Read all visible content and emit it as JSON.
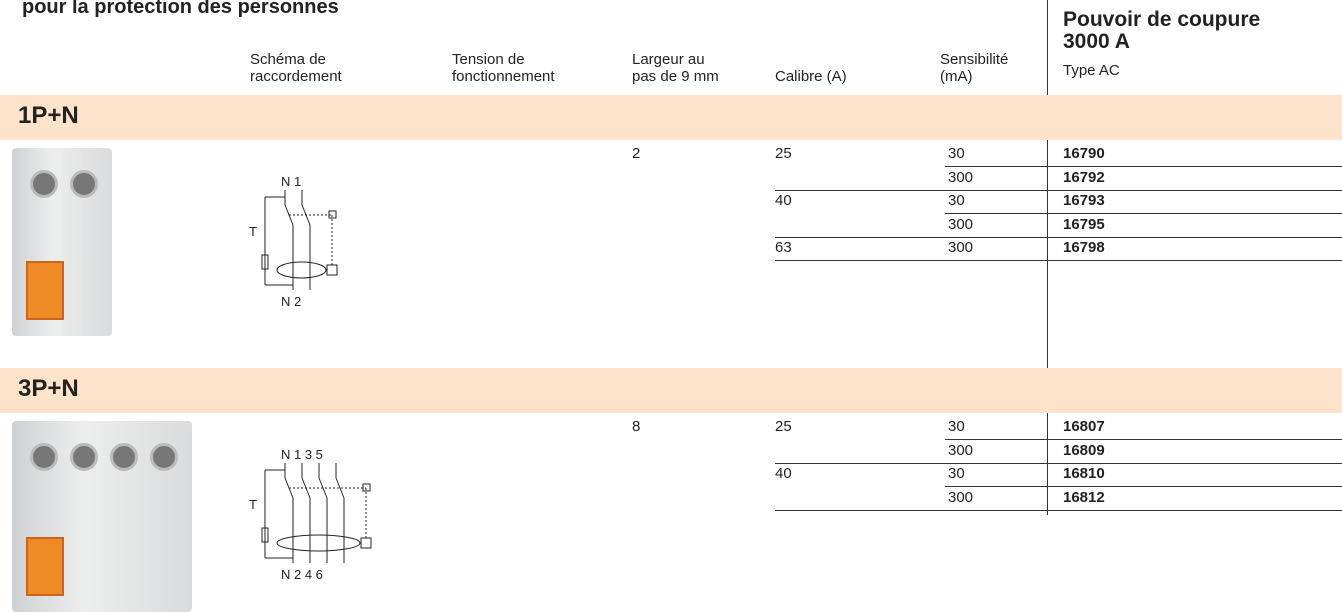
{
  "header": {
    "title": "pour la protection des personnes",
    "columns": [
      [
        "Schéma de",
        "raccordement"
      ],
      [
        "Tension de",
        "fonctionnement"
      ],
      [
        "Largeur au",
        "pas de 9 mm"
      ],
      [
        "Calibre (A)"
      ],
      [
        "Sensibilité",
        "(mA)"
      ]
    ],
    "breaking": {
      "title": [
        "Pouvoir de coupure",
        "3000 A"
      ],
      "type": "Type AC"
    }
  },
  "sections": [
    {
      "title": "1P+N",
      "width": "2",
      "diagram": {
        "top": "N 1",
        "bottom": "N 2",
        "test": "T"
      },
      "groups": [
        {
          "calibre": "25",
          "items": [
            {
              "sensitivity": "30",
              "ref": "16790"
            },
            {
              "sensitivity": "300",
              "ref": "16792"
            }
          ]
        },
        {
          "calibre": "40",
          "items": [
            {
              "sensitivity": "30",
              "ref": "16793"
            },
            {
              "sensitivity": "300",
              "ref": "16795"
            }
          ]
        },
        {
          "calibre": "63",
          "items": [
            {
              "sensitivity": "300",
              "ref": "16798"
            }
          ]
        }
      ]
    },
    {
      "title": "3P+N",
      "width": "8",
      "diagram": {
        "top": "N 1 3 5",
        "bottom": "N 2 4 6",
        "test": "T"
      },
      "groups": [
        {
          "calibre": "25",
          "items": [
            {
              "sensitivity": "30",
              "ref": "16807"
            },
            {
              "sensitivity": "300",
              "ref": "16809"
            }
          ]
        },
        {
          "calibre": "40",
          "items": [
            {
              "sensitivity": "30",
              "ref": "16810"
            },
            {
              "sensitivity": "300",
              "ref": "16812"
            }
          ]
        }
      ]
    }
  ]
}
